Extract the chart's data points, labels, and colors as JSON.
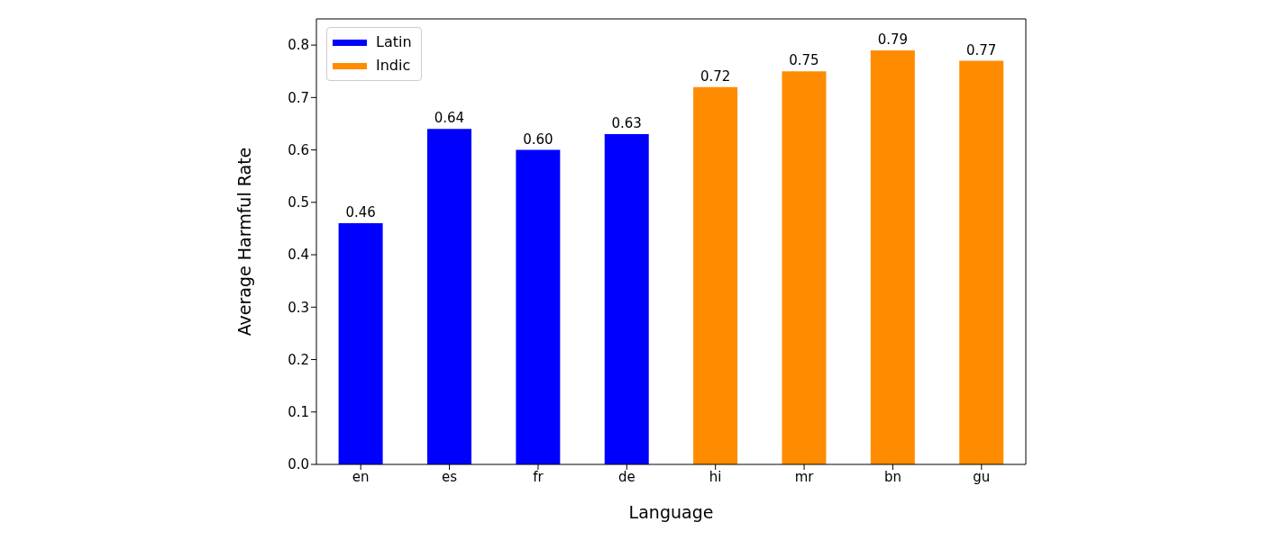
{
  "chart_data": {
    "type": "bar",
    "xlabel": "Language",
    "ylabel": "Average Harmful Rate",
    "categories": [
      "en",
      "es",
      "fr",
      "de",
      "hi",
      "mr",
      "bn",
      "gu"
    ],
    "series": [
      {
        "name": "Latin",
        "color": "#0000ff",
        "values": [
          0.46,
          0.64,
          0.6,
          0.63,
          null,
          null,
          null,
          null
        ],
        "value_labels": [
          "0.46",
          "0.64",
          "0.60",
          "0.63",
          null,
          null,
          null,
          null
        ]
      },
      {
        "name": "Indic",
        "color": "#ff8c00",
        "values": [
          null,
          null,
          null,
          null,
          0.72,
          0.75,
          0.79,
          0.77
        ],
        "value_labels": [
          null,
          null,
          null,
          null,
          "0.72",
          "0.75",
          "0.79",
          "0.77"
        ]
      }
    ],
    "ylim": [
      0,
      0.85
    ],
    "yticks": [
      {
        "value": 0,
        "label": "0.0"
      },
      {
        "value": 0.1,
        "label": "0.1"
      },
      {
        "value": 0.2,
        "label": "0.2"
      },
      {
        "value": 0.3,
        "label": "0.3"
      },
      {
        "value": 0.4,
        "label": "0.4"
      },
      {
        "value": 0.5,
        "label": "0.5"
      },
      {
        "value": 0.6,
        "label": "0.6"
      },
      {
        "value": 0.7,
        "label": "0.7"
      },
      {
        "value": 0.8,
        "label": "0.8"
      }
    ],
    "legend": "top left",
    "grid": false
  }
}
